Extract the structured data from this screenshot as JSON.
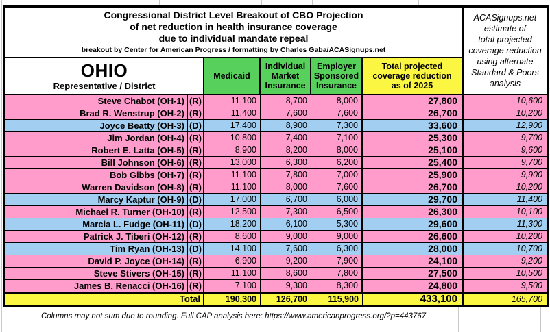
{
  "title": {
    "line1": "Congressional District Level Breakout of CBO Projection",
    "line2": "of net reduction in health insurance coverage",
    "line3": "due to individual mandate repeal",
    "byline": "breakout by Center for American Progress / formatting by Charles Gaba/ACASignups.net"
  },
  "side_note": "ACASignups.net\nestimate of\ntotal projected\ncoverage reduction\nusing alternate\nStandard & Poors\nanalysis",
  "header": {
    "state": "OHIO",
    "rep_label": "Representative / District",
    "col_medicaid": "Medicaid",
    "col_individual": "Individual\nMarket\nInsurance",
    "col_employer": "Employer\nSponsored\nInsurance",
    "col_total": "Total projected\ncoverage reduction\nas of 2025"
  },
  "rows": [
    {
      "name": "Steve Chabot (OH-1)",
      "party": "(R)",
      "medicaid": "11,100",
      "individual": "8,700",
      "employer": "8,000",
      "total": "27,800",
      "sp": "10,600"
    },
    {
      "name": "Brad R. Wenstrup (OH-2)",
      "party": "(R)",
      "medicaid": "11,400",
      "individual": "7,600",
      "employer": "7,600",
      "total": "26,700",
      "sp": "10,200"
    },
    {
      "name": "Joyce Beatty (OH-3)",
      "party": "(D)",
      "medicaid": "17,400",
      "individual": "8,900",
      "employer": "7,300",
      "total": "33,600",
      "sp": "12,900"
    },
    {
      "name": "Jim Jordan (OH-4)",
      "party": "(R)",
      "medicaid": "10,800",
      "individual": "7,400",
      "employer": "7,100",
      "total": "25,300",
      "sp": "9,700"
    },
    {
      "name": "Robert E. Latta (OH-5)",
      "party": "(R)",
      "medicaid": "8,900",
      "individual": "8,200",
      "employer": "8,000",
      "total": "25,100",
      "sp": "9,600"
    },
    {
      "name": "Bill Johnson (OH-6)",
      "party": "(R)",
      "medicaid": "13,000",
      "individual": "6,300",
      "employer": "6,200",
      "total": "25,400",
      "sp": "9,700"
    },
    {
      "name": "Bob Gibbs (OH-7)",
      "party": "(R)",
      "medicaid": "11,100",
      "individual": "7,800",
      "employer": "7,000",
      "total": "25,900",
      "sp": "9,900"
    },
    {
      "name": "Warren Davidson (OH-8)",
      "party": "(R)",
      "medicaid": "11,100",
      "individual": "8,000",
      "employer": "7,600",
      "total": "26,700",
      "sp": "10,200"
    },
    {
      "name": "Marcy Kaptur (OH-9)",
      "party": "(D)",
      "medicaid": "17,000",
      "individual": "6,700",
      "employer": "6,000",
      "total": "29,700",
      "sp": "11,400"
    },
    {
      "name": "Michael R. Turner (OH-10)",
      "party": "(R)",
      "medicaid": "12,500",
      "individual": "7,300",
      "employer": "6,500",
      "total": "26,300",
      "sp": "10,100"
    },
    {
      "name": "Marcia L. Fudge (OH-11)",
      "party": "(D)",
      "medicaid": "18,200",
      "individual": "6,100",
      "employer": "5,300",
      "total": "29,600",
      "sp": "11,300"
    },
    {
      "name": "Patrick J. Tiberi (OH-12)",
      "party": "(R)",
      "medicaid": "8,600",
      "individual": "9,000",
      "employer": "9,000",
      "total": "26,600",
      "sp": "10,200"
    },
    {
      "name": "Tim Ryan (OH-13)",
      "party": "(D)",
      "medicaid": "14,100",
      "individual": "7,600",
      "employer": "6,300",
      "total": "28,000",
      "sp": "10,700"
    },
    {
      "name": "David P. Joyce (OH-14)",
      "party": "(R)",
      "medicaid": "6,900",
      "individual": "9,200",
      "employer": "7,900",
      "total": "24,100",
      "sp": "9,200"
    },
    {
      "name": "Steve Stivers (OH-15)",
      "party": "(R)",
      "medicaid": "11,100",
      "individual": "8,600",
      "employer": "7,800",
      "total": "27,500",
      "sp": "10,500"
    },
    {
      "name": "James B. Renacci (OH-16)",
      "party": "(R)",
      "medicaid": "7,100",
      "individual": "9,300",
      "employer": "8,300",
      "total": "24,800",
      "sp": "9,500"
    }
  ],
  "total_row": {
    "label": "Total",
    "medicaid": "190,300",
    "individual": "126,700",
    "employer": "115,900",
    "total": "433,100",
    "sp": "165,700"
  },
  "footer_note": "Columns may not sum due to rounding. Full CAP analysis here: https://www.americanprogress.org/?p=443767",
  "colors": {
    "republican_row": "#ff9ccb",
    "democrat_row": "#a2cef2",
    "green_header": "#58d05c",
    "yellow_highlight": "#fbf642",
    "border": "#000000"
  },
  "chart_data": {
    "type": "table",
    "title": "Congressional District Level Breakout of CBO Projection of net reduction in health insurance coverage due to individual mandate repeal (Ohio)",
    "columns": [
      "Representative / District",
      "Party",
      "Medicaid",
      "Individual Market Insurance",
      "Employer Sponsored Insurance",
      "Total projected coverage reduction as of 2025",
      "ACASignups.net estimate using alternate Standard & Poors analysis"
    ],
    "rows": [
      [
        "Steve Chabot (OH-1)",
        "R",
        11100,
        8700,
        8000,
        27800,
        10600
      ],
      [
        "Brad R. Wenstrup (OH-2)",
        "R",
        11400,
        7600,
        7600,
        26700,
        10200
      ],
      [
        "Joyce Beatty (OH-3)",
        "D",
        17400,
        8900,
        7300,
        33600,
        12900
      ],
      [
        "Jim Jordan (OH-4)",
        "R",
        10800,
        7400,
        7100,
        25300,
        9700
      ],
      [
        "Robert E. Latta (OH-5)",
        "R",
        8900,
        8200,
        8000,
        25100,
        9600
      ],
      [
        "Bill Johnson (OH-6)",
        "R",
        13000,
        6300,
        6200,
        25400,
        9700
      ],
      [
        "Bob Gibbs (OH-7)",
        "R",
        11100,
        7800,
        7000,
        25900,
        9900
      ],
      [
        "Warren Davidson (OH-8)",
        "R",
        11100,
        8000,
        7600,
        26700,
        10200
      ],
      [
        "Marcy Kaptur (OH-9)",
        "D",
        17000,
        6700,
        6000,
        29700,
        11400
      ],
      [
        "Michael R. Turner (OH-10)",
        "R",
        12500,
        7300,
        6500,
        26300,
        10100
      ],
      [
        "Marcia L. Fudge (OH-11)",
        "D",
        18200,
        6100,
        5300,
        29600,
        11300
      ],
      [
        "Patrick J. Tiberi (OH-12)",
        "R",
        8600,
        9000,
        9000,
        26600,
        10200
      ],
      [
        "Tim Ryan (OH-13)",
        "D",
        14100,
        7600,
        6300,
        28000,
        10700
      ],
      [
        "David P. Joyce (OH-14)",
        "R",
        6900,
        9200,
        7900,
        24100,
        9200
      ],
      [
        "Steve Stivers (OH-15)",
        "R",
        11100,
        8600,
        7800,
        27500,
        10500
      ],
      [
        "James B. Renacci (OH-16)",
        "R",
        7100,
        9300,
        8300,
        24800,
        9500
      ]
    ],
    "total": [
      "Total",
      "",
      190300,
      126700,
      115900,
      433100,
      165700
    ]
  }
}
